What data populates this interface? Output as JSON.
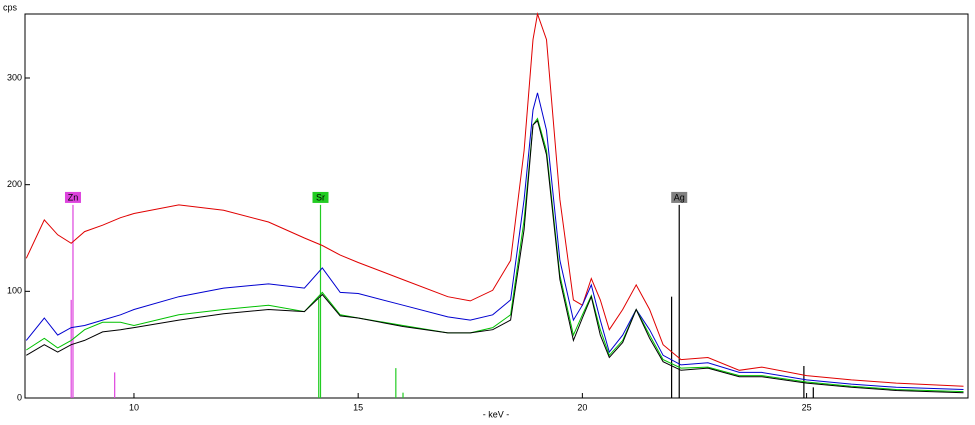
{
  "chart_data": {
    "type": "line",
    "ylabel": "cps",
    "xlabel": "- keV -",
    "xlim": [
      7.57,
      28.6
    ],
    "ylim": [
      0,
      360
    ],
    "xticks": [
      10,
      15,
      20,
      25
    ],
    "yticks": [
      0,
      100,
      200,
      300
    ],
    "x": [
      7.6,
      8.0,
      8.3,
      8.6,
      8.9,
      9.3,
      9.7,
      10,
      11,
      12,
      13,
      13.8,
      14.2,
      14.6,
      15,
      16,
      17,
      17.5,
      18,
      18.4,
      18.7,
      18.9,
      19.0,
      19.2,
      19.5,
      19.8,
      20.0,
      20.2,
      20.4,
      20.6,
      20.9,
      21.2,
      21.5,
      21.8,
      22.2,
      22.8,
      23.5,
      24,
      25,
      26,
      27,
      28.5
    ],
    "series": [
      {
        "color": "#e00000",
        "values": [
          131,
          167,
          153,
          145,
          156,
          162,
          169,
          173,
          181,
          176,
          165,
          150,
          143,
          134,
          127,
          111,
          95,
          91,
          101,
          129,
          232,
          336,
          360,
          336,
          186,
          92,
          87,
          112,
          92,
          64,
          83,
          106,
          83,
          50,
          36,
          38,
          26,
          29,
          21,
          17,
          14,
          11
        ]
      },
      {
        "color": "#0000d0",
        "values": [
          54,
          75,
          59,
          66,
          68,
          73,
          78,
          83,
          95,
          103,
          107,
          103,
          122,
          99,
          98,
          87,
          76,
          73,
          78,
          92,
          186,
          270,
          286,
          251,
          129,
          73,
          87,
          106,
          73,
          43,
          59,
          83,
          64,
          40,
          31,
          33,
          24,
          24,
          17,
          13,
          10,
          8
        ]
      },
      {
        "color": "#00c000",
        "values": [
          45,
          56,
          47,
          54,
          64,
          71,
          71,
          68,
          78,
          83,
          87,
          81,
          99,
          78,
          75,
          68,
          61,
          61,
          66,
          78,
          167,
          256,
          262,
          232,
          115,
          59,
          78,
          96,
          64,
          40,
          54,
          83,
          59,
          36,
          28,
          29,
          21,
          21,
          15,
          11,
          8,
          6
        ]
      },
      {
        "color": "#000000",
        "values": [
          40,
          50,
          43,
          50,
          54,
          62,
          64,
          66,
          73,
          79,
          83,
          81,
          97,
          77,
          75,
          67,
          61,
          61,
          64,
          73,
          158,
          256,
          260,
          228,
          111,
          54,
          75,
          95,
          59,
          38,
          52,
          83,
          56,
          34,
          26,
          28,
          20,
          20,
          14,
          10,
          7,
          5
        ]
      }
    ],
    "markers": [
      {
        "label": "Zn",
        "color": "#dd44dd",
        "lines": [
          {
            "x": 8.64,
            "height": 181
          },
          {
            "x": 8.6,
            "height": 92
          },
          {
            "x": 9.57,
            "height": 24
          }
        ]
      },
      {
        "label": "Sr",
        "color": "#22cc22",
        "lines": [
          {
            "x": 14.16,
            "height": 181
          },
          {
            "x": 14.12,
            "height": 93
          },
          {
            "x": 15.84,
            "height": 28
          },
          {
            "x": 16.0,
            "height": 5
          }
        ]
      },
      {
        "label": "Ag",
        "color": "#000000",
        "lines": [
          {
            "x": 22.16,
            "height": 181
          },
          {
            "x": 21.99,
            "height": 95
          },
          {
            "x": 24.94,
            "height": 30
          },
          {
            "x": 25.15,
            "height": 10
          }
        ]
      }
    ]
  }
}
